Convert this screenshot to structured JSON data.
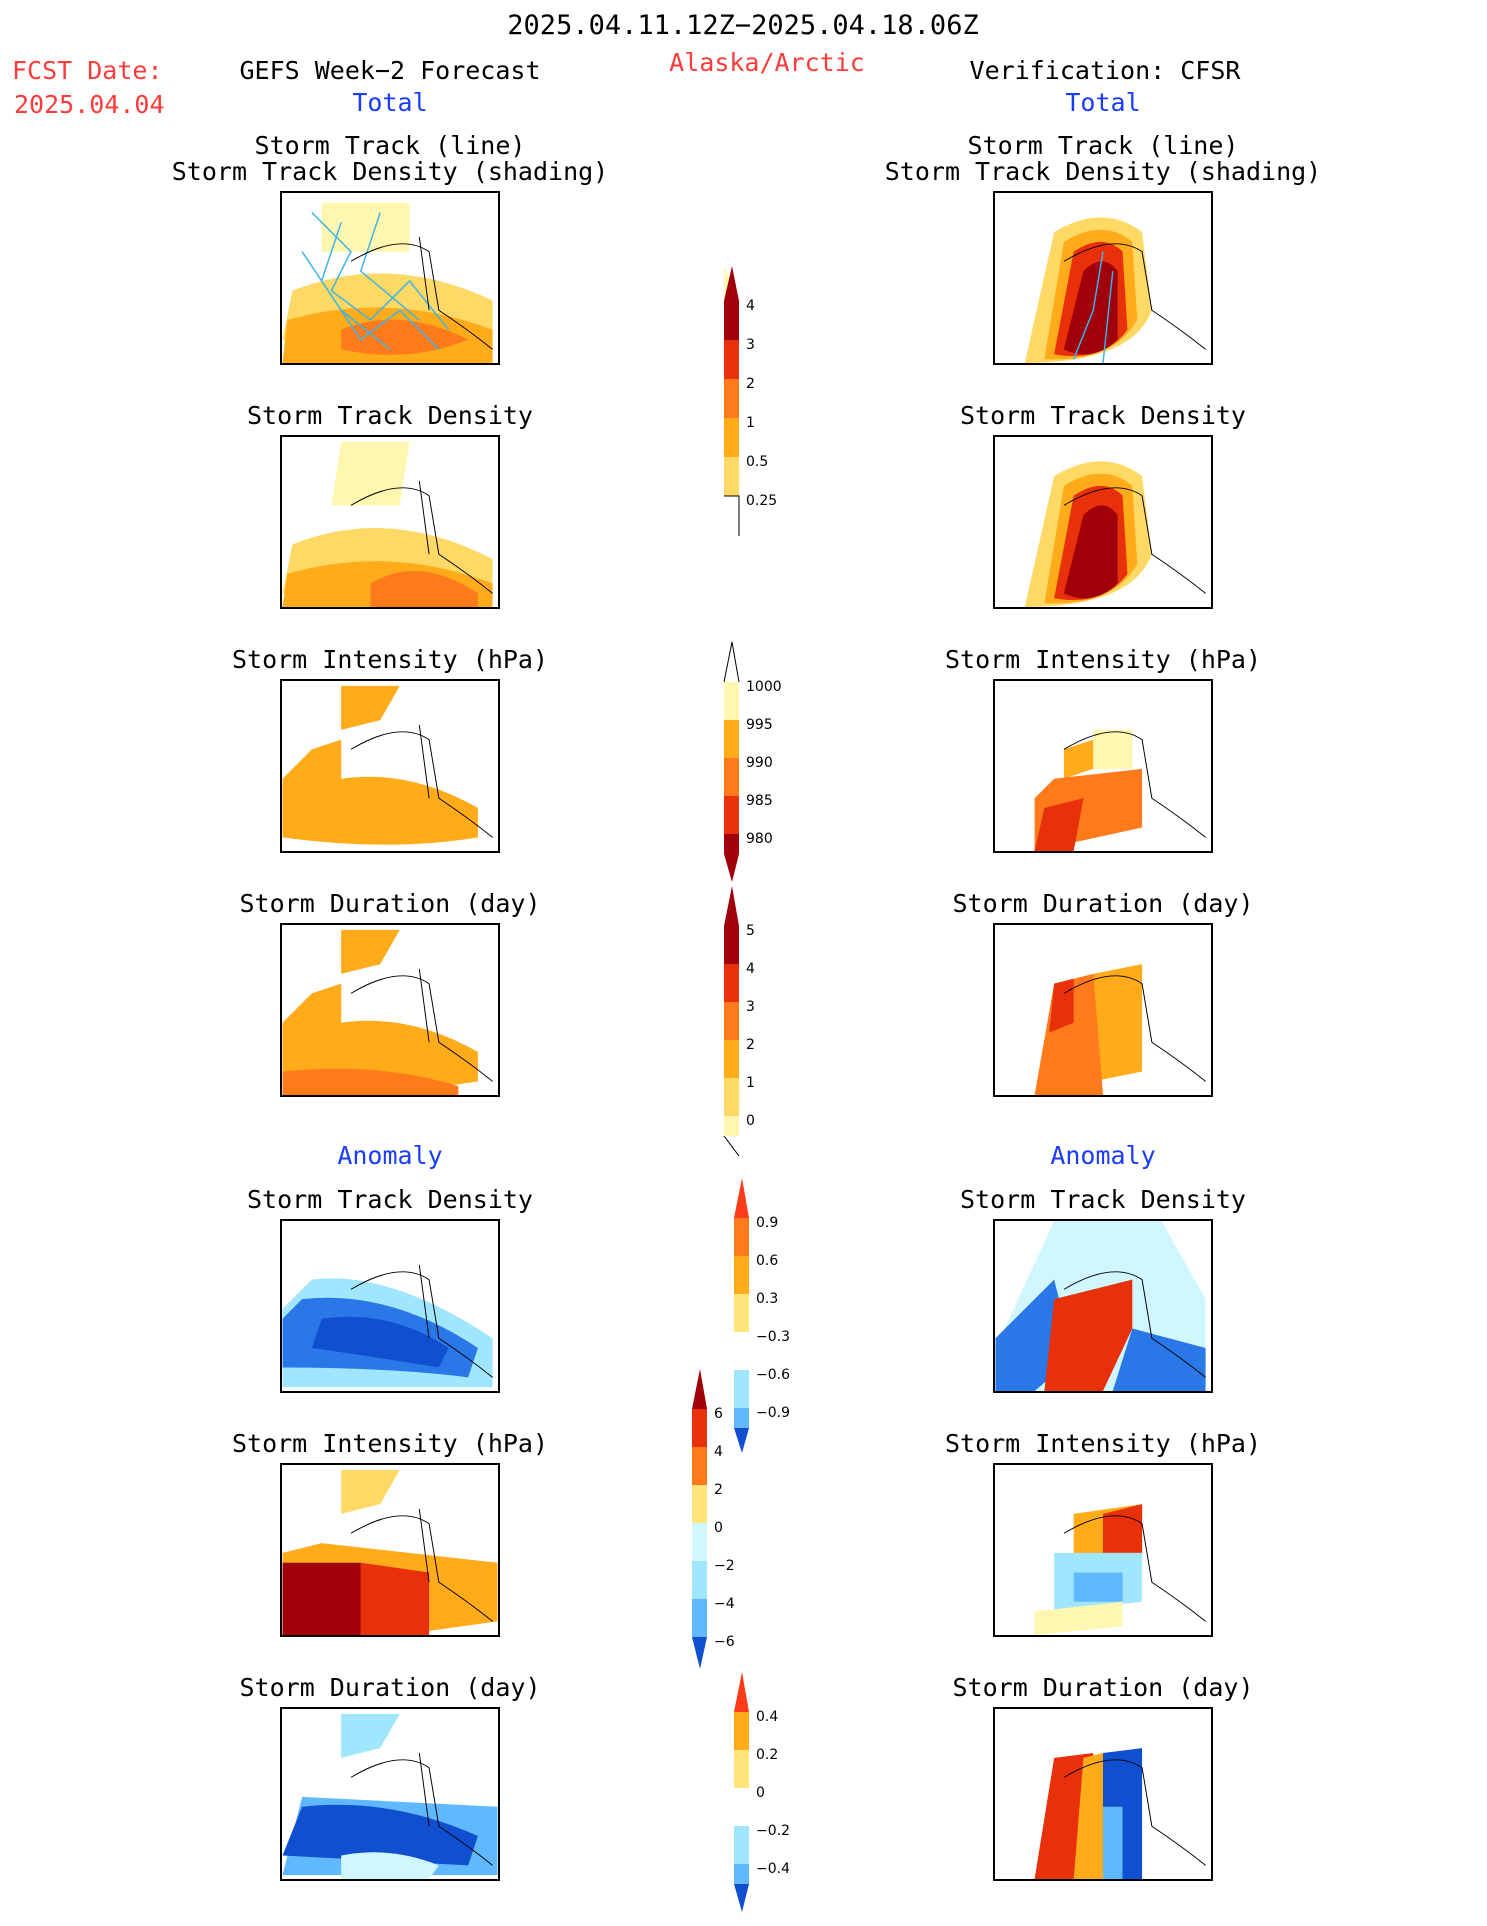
{
  "header": {
    "date_range": "2025.04.11.12Z−2025.04.18.06Z",
    "fcst_label": "FCST Date:",
    "fcst_date": "2025.04.04",
    "left_model": "GEFS Week−2 Forecast",
    "region": "Alaska/Arctic",
    "right_model": "Verification: CFSR",
    "left_section": "Total",
    "right_section": "Total"
  },
  "panels": {
    "track_line": "Storm Track (line)",
    "track_shading": "Storm Track Density (shading)",
    "density": "Storm Track Density",
    "intensity": "Storm Intensity (hPa)",
    "duration": "Storm Duration (day)",
    "anomaly": "Anomaly"
  },
  "colorbars": {
    "density": [
      "4",
      "3",
      "2",
      "1",
      "0.5",
      "0.25"
    ],
    "intensity": [
      "1000",
      "995",
      "990",
      "985",
      "980"
    ],
    "duration": [
      "5",
      "4",
      "3",
      "2",
      "1",
      "0"
    ],
    "density_anom": [
      "0.9",
      "0.6",
      "0.3",
      "−0.3",
      "−0.6",
      "−0.9"
    ],
    "intensity_anom": [
      "6",
      "4",
      "2",
      "0",
      "−2",
      "−4",
      "−6"
    ],
    "duration_anom": [
      "0.4",
      "0.2",
      "0",
      "−0.2",
      "−0.4"
    ]
  },
  "colors": {
    "warm": [
      "#fff7b0",
      "#ffd966",
      "#ffab1a",
      "#ff7a1a",
      "#e8300a",
      "#a0000a"
    ],
    "cool": [
      "#d0f6ff",
      "#a0e6ff",
      "#60b8ff",
      "#2a78e8",
      "#1050d0"
    ],
    "track": "#3ab4e8"
  }
}
